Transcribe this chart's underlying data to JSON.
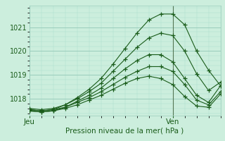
{
  "background_color": "#cceedd",
  "plot_bg_color": "#cceedd",
  "grid_color_major": "#99ccbb",
  "grid_color_minor": "#aaddcc",
  "line_color": "#1a5c1a",
  "xlabel": "Pression niveau de la mer( hPa )",
  "xlim": [
    0,
    48
  ],
  "ylim": [
    1017.3,
    1021.9
  ],
  "yticks": [
    1018,
    1019,
    1020,
    1021
  ],
  "xtick_positions": [
    0,
    36
  ],
  "xtick_labels": [
    "Jeu",
    "Ven"
  ],
  "vline_x": 36,
  "series": [
    [
      0,
      1017.55,
      3,
      1017.5,
      6,
      1017.55,
      9,
      1017.75,
      12,
      1018.05,
      15,
      1018.4,
      18,
      1018.85,
      21,
      1019.45,
      24,
      1020.1,
      27,
      1020.75,
      30,
      1021.3,
      33,
      1021.55,
      36,
      1021.55,
      39,
      1021.1,
      42,
      1020.0,
      45,
      1019.2,
      48,
      1018.55
    ],
    [
      0,
      1017.6,
      3,
      1017.55,
      6,
      1017.6,
      9,
      1017.75,
      12,
      1018.0,
      15,
      1018.3,
      18,
      1018.65,
      21,
      1019.15,
      24,
      1019.65,
      27,
      1020.15,
      30,
      1020.55,
      33,
      1020.75,
      36,
      1020.65,
      39,
      1020.0,
      42,
      1019.05,
      45,
      1018.35,
      48,
      1018.7
    ],
    [
      0,
      1017.5,
      3,
      1017.45,
      6,
      1017.5,
      9,
      1017.65,
      12,
      1017.9,
      15,
      1018.15,
      18,
      1018.45,
      21,
      1018.85,
      24,
      1019.25,
      27,
      1019.6,
      30,
      1019.85,
      33,
      1019.85,
      36,
      1019.55,
      39,
      1018.85,
      42,
      1018.15,
      45,
      1017.85,
      48,
      1018.55
    ],
    [
      0,
      1017.55,
      3,
      1017.5,
      6,
      1017.55,
      9,
      1017.65,
      12,
      1017.85,
      15,
      1018.05,
      18,
      1018.3,
      21,
      1018.6,
      24,
      1018.9,
      27,
      1019.15,
      30,
      1019.35,
      33,
      1019.35,
      36,
      1019.15,
      39,
      1018.6,
      42,
      1017.95,
      45,
      1017.75,
      48,
      1018.3
    ],
    [
      0,
      1017.5,
      3,
      1017.45,
      6,
      1017.5,
      9,
      1017.6,
      12,
      1017.75,
      15,
      1017.95,
      18,
      1018.15,
      21,
      1018.4,
      24,
      1018.65,
      27,
      1018.85,
      30,
      1018.95,
      33,
      1018.85,
      36,
      1018.6,
      39,
      1018.1,
      42,
      1017.7,
      45,
      1017.65,
      48,
      1018.2
    ]
  ]
}
